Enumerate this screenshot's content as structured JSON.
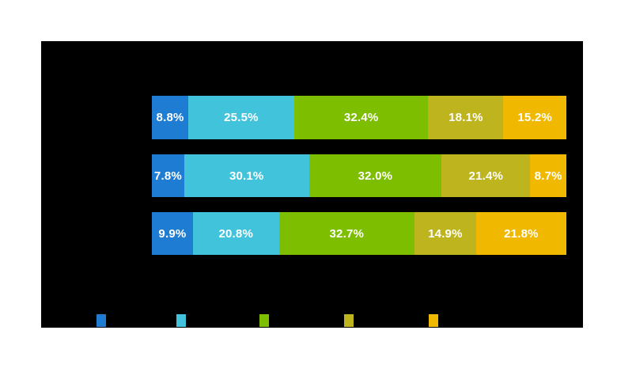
{
  "page": {
    "background_color": "#ffffff",
    "panel_color": "#000000",
    "label_color": "#ffffff"
  },
  "chart_data": {
    "type": "bar",
    "stacked": true,
    "orientation": "horizontal",
    "unit": "%",
    "xlim": [
      0,
      100
    ],
    "grid": false,
    "legend_position": "bottom",
    "categories": [
      "",
      "",
      ""
    ],
    "series": [
      {
        "name": "blue",
        "color": "#1E7DD2",
        "values": [
          8.8,
          7.8,
          9.9
        ]
      },
      {
        "name": "light-blue",
        "color": "#41C3DC",
        "values": [
          25.5,
          30.1,
          20.8
        ]
      },
      {
        "name": "green",
        "color": "#7DBE00",
        "values": [
          32.4,
          32.0,
          32.7
        ]
      },
      {
        "name": "olive",
        "color": "#BEB41E",
        "values": [
          18.1,
          21.4,
          14.9
        ]
      },
      {
        "name": "amber",
        "color": "#F0B900",
        "values": [
          15.2,
          8.7,
          21.8
        ]
      }
    ],
    "labels": [
      [
        "8.8%",
        "25.5%",
        "32.4%",
        "18.1%",
        "15.2%"
      ],
      [
        "7.8%",
        "30.1%",
        "32.0%",
        "21.4%",
        "8.7%"
      ],
      [
        "9.9%",
        "20.8%",
        "32.7%",
        "14.9%",
        "21.8%"
      ]
    ]
  }
}
